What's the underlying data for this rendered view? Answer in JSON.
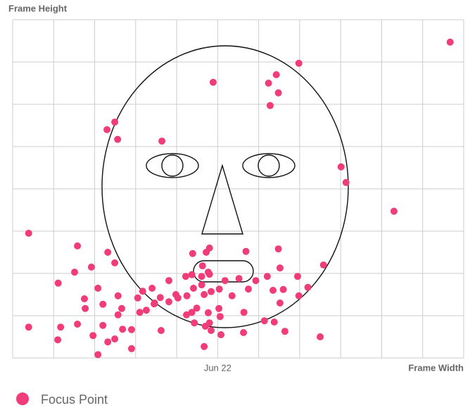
{
  "chart_data": {
    "type": "scatter",
    "y_label": "Frame Height",
    "x_label": "Frame Width",
    "xlim": [
      0,
      11
    ],
    "ylim": [
      0,
      8
    ],
    "xticks": [
      {
        "value": 5,
        "label": "Jun 22"
      }
    ],
    "xgrid": [
      0,
      1,
      2,
      3,
      4,
      5,
      6,
      7,
      8,
      9,
      10,
      11
    ],
    "ygrid": [
      0,
      1,
      2,
      3,
      4,
      5,
      6,
      7,
      8
    ],
    "grid": true,
    "series": [
      {
        "name": "Focus Point",
        "color": "#f03c78",
        "x": [
          10.67,
          6.98,
          6.43,
          6.24,
          6.48,
          6.28,
          4.89,
          2.49,
          2.3,
          2.56,
          3.64,
          8.01,
          8.13,
          9.3,
          0.39,
          1.58,
          2.32,
          2.49,
          1.92,
          1.51,
          1.11,
          1.75,
          1.77,
          2.08,
          2.2,
          2.57,
          2.66,
          2.57,
          1.58,
          1.17,
          0.39,
          1.1,
          1.96,
          2.2,
          2.68,
          2.32,
          2.49,
          2.9,
          2.9,
          2.08,
          3.1,
          3.05,
          3.17,
          3.4,
          3.45,
          3.6,
          3.81,
          3.81,
          3.62,
          4.39,
          4.72,
          4.8,
          5.69,
          6.48,
          4.63,
          4.77,
          4.61,
          4.8,
          4.37,
          4.22,
          3.98,
          4.25,
          4.41,
          4.61,
          4.67,
          4.84,
          5.04,
          5.18,
          5.52,
          5.93,
          6.21,
          6.52,
          6.35,
          6.6,
          6.95,
          7.2,
          7.58,
          6.98,
          6.52,
          5.75,
          5.64,
          5.35,
          5.03,
          4.77,
          4.49,
          4.37,
          4.24,
          4.03,
          4.8,
          5.06,
          4.84,
          5.08,
          4.43,
          4.7,
          5.63,
          6.14,
          6.38,
          6.64,
          7.5,
          4.67,
          3.46,
          3.26
        ],
        "values": [
          7.47,
          6.97,
          6.7,
          6.5,
          6.27,
          5.97,
          6.52,
          5.58,
          5.4,
          5.17,
          5.13,
          4.52,
          4.15,
          3.47,
          2.95,
          2.65,
          2.5,
          2.25,
          2.15,
          2.03,
          1.77,
          1.4,
          1.17,
          1.65,
          1.27,
          1.47,
          1.17,
          1.02,
          0.8,
          0.73,
          0.73,
          0.43,
          0.53,
          0.77,
          0.68,
          0.38,
          0.45,
          0.67,
          0.22,
          0.08,
          1.08,
          1.42,
          1.58,
          1.65,
          1.28,
          1.43,
          1.83,
          1.33,
          0.65,
          2.47,
          2.5,
          2.6,
          2.52,
          2.58,
          2.18,
          2.03,
          1.93,
          1.98,
          1.97,
          1.93,
          1.5,
          1.47,
          1.65,
          1.73,
          1.5,
          1.57,
          1.63,
          1.83,
          1.88,
          1.83,
          1.93,
          2.13,
          1.6,
          1.62,
          1.93,
          1.67,
          2.2,
          1.47,
          1.3,
          1.63,
          1.08,
          1.47,
          1.17,
          1.07,
          1.18,
          1.08,
          1.02,
          1.42,
          0.83,
          0.98,
          0.65,
          0.55,
          0.83,
          0.75,
          0.6,
          0.88,
          0.85,
          0.63,
          0.5,
          0.27,
          1.3,
          1.13
        ]
      }
    ]
  }
}
